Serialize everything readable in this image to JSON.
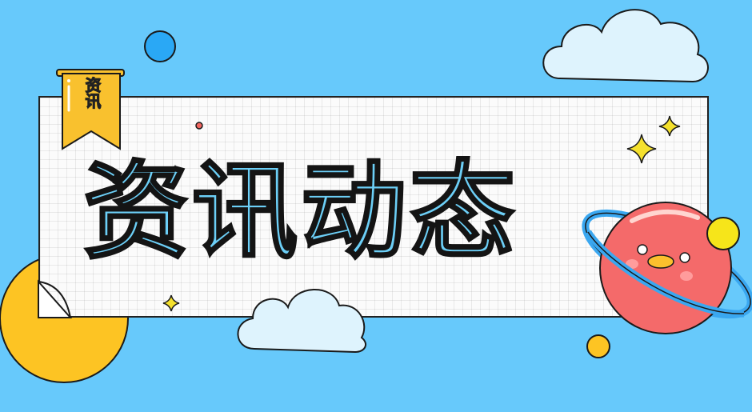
{
  "banner": {
    "title": "资讯动态",
    "ribbon_label": "资讯"
  },
  "colors": {
    "background": "#67c9fb",
    "title_fill": "#6ccff7",
    "ribbon": "#f9c12e",
    "planet": "#f46a6a",
    "moon": "#f6e51a",
    "cloud": "#def3fd",
    "star": "#f5e12d",
    "blue_dot": "#29a8f4",
    "yellow_circle": "#fdc423"
  },
  "icons": [
    "cloud-icon",
    "star-icon",
    "planet-icon",
    "ribbon-icon"
  ]
}
